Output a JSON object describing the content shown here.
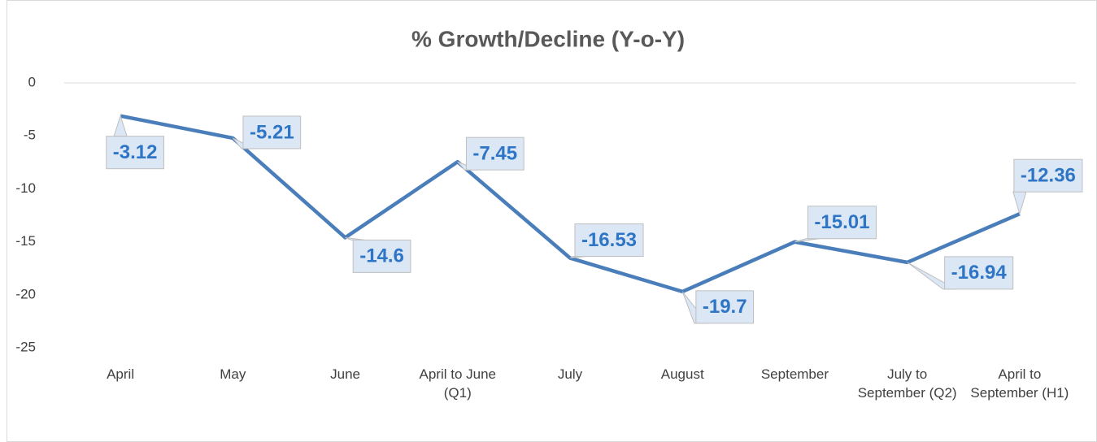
{
  "chart_data": {
    "type": "line",
    "title": "% Growth/Decline (Y-o-Y)",
    "categories": [
      "April",
      "May",
      "June",
      "April to June (Q1)",
      "July",
      "August",
      "September",
      "July to September (Q2)",
      "April to September (H1)"
    ],
    "series": [
      {
        "name": "% Growth/Decline (Y-o-Y)",
        "color": "#4a7ebb",
        "values": [
          -3.12,
          -5.21,
          -14.6,
          -7.45,
          -16.53,
          -19.7,
          -15.01,
          -16.94,
          -12.36
        ]
      }
    ],
    "ylim": [
      -25,
      0
    ],
    "yticks": [
      0,
      -5,
      -10,
      -15,
      -20,
      -25
    ],
    "grid": false
  }
}
